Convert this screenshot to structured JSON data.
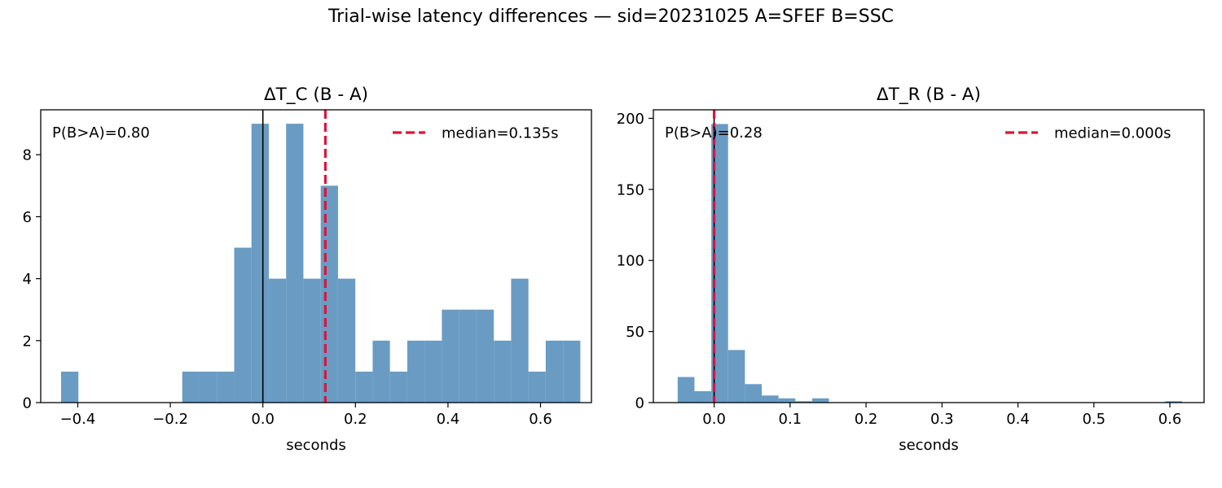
{
  "figure": {
    "suptitle": "Trial-wise latency differences — sid=20231025  A=SFEF  B=SSC"
  },
  "colors": {
    "bar": "#6a9bc3",
    "median": "#dc143c",
    "zero_line": "#000000"
  },
  "chart_data": [
    {
      "type": "bar",
      "title": "ΔT_C (B - A)",
      "xlabel": "seconds",
      "ylabel": "",
      "xlim": [
        -0.48,
        0.71
      ],
      "ylim": [
        0,
        9.45
      ],
      "xticks": [
        -0.4,
        -0.2,
        0.0,
        0.2,
        0.4,
        0.6
      ],
      "xtick_labels": [
        "−0.4",
        "−0.2",
        "0.0",
        "0.2",
        "0.4",
        "0.6"
      ],
      "yticks": [
        0,
        2,
        4,
        6,
        8
      ],
      "ytick_labels": [
        "0",
        "2",
        "4",
        "6",
        "8"
      ],
      "bin_edges": [
        -0.436,
        -0.3986,
        -0.3612,
        -0.3238,
        -0.2864,
        -0.249,
        -0.2116,
        -0.1742,
        -0.1368,
        -0.0994,
        -0.062,
        -0.0246,
        0.0128,
        0.0502,
        0.0876,
        0.125,
        0.1624,
        0.1998,
        0.2372,
        0.2746,
        0.312,
        0.3494,
        0.3868,
        0.4242,
        0.4616,
        0.499,
        0.5364,
        0.5738,
        0.6112,
        0.6486,
        0.686
      ],
      "counts": [
        1,
        0,
        0,
        0,
        0,
        0,
        0,
        1,
        1,
        1,
        5,
        9,
        4,
        9,
        4,
        7,
        4,
        1,
        2,
        1,
        2,
        2,
        3,
        3,
        3,
        2,
        4,
        1,
        2,
        2
      ],
      "median": 0.135,
      "zero_line": 0.0,
      "annotation": "P(B>A)=0.80",
      "legend": {
        "label": "median=0.135s",
        "position": "top-right"
      }
    },
    {
      "type": "bar",
      "title": "ΔT_R (B - A)",
      "xlabel": "seconds",
      "ylabel": "",
      "xlim": [
        -0.08,
        0.645
      ],
      "ylim": [
        0,
        206
      ],
      "xticks": [
        0.0,
        0.1,
        0.2,
        0.3,
        0.4,
        0.5,
        0.6
      ],
      "xtick_labels": [
        "0.0",
        "0.1",
        "0.2",
        "0.3",
        "0.4",
        "0.5",
        "0.6"
      ],
      "yticks": [
        0,
        50,
        100,
        150,
        200
      ],
      "ytick_labels": [
        "0",
        "50",
        "100",
        "150",
        "200"
      ],
      "bin_edges": [
        -0.048,
        -0.02587,
        -0.00373,
        0.0184,
        0.04053,
        0.06267,
        0.0848,
        0.10693,
        0.12907,
        0.1512,
        0.17333,
        0.19547,
        0.2176,
        0.23973,
        0.26187,
        0.284,
        0.30613,
        0.32827,
        0.3504,
        0.37253,
        0.39467,
        0.4168,
        0.43893,
        0.46107,
        0.4832,
        0.50533,
        0.52747,
        0.5496,
        0.57173,
        0.59387,
        0.616
      ],
      "counts": [
        18,
        8,
        196,
        37,
        13,
        5,
        3,
        1,
        3,
        0,
        0,
        0,
        0,
        0,
        0,
        0,
        0,
        0,
        0,
        0,
        0,
        0,
        0,
        0,
        0,
        0,
        0,
        0,
        0,
        1
      ],
      "median": 0.0,
      "zero_line": 0.0,
      "annotation": "P(B>A)=0.28",
      "legend": {
        "label": "median=0.000s",
        "position": "top-right"
      }
    }
  ]
}
